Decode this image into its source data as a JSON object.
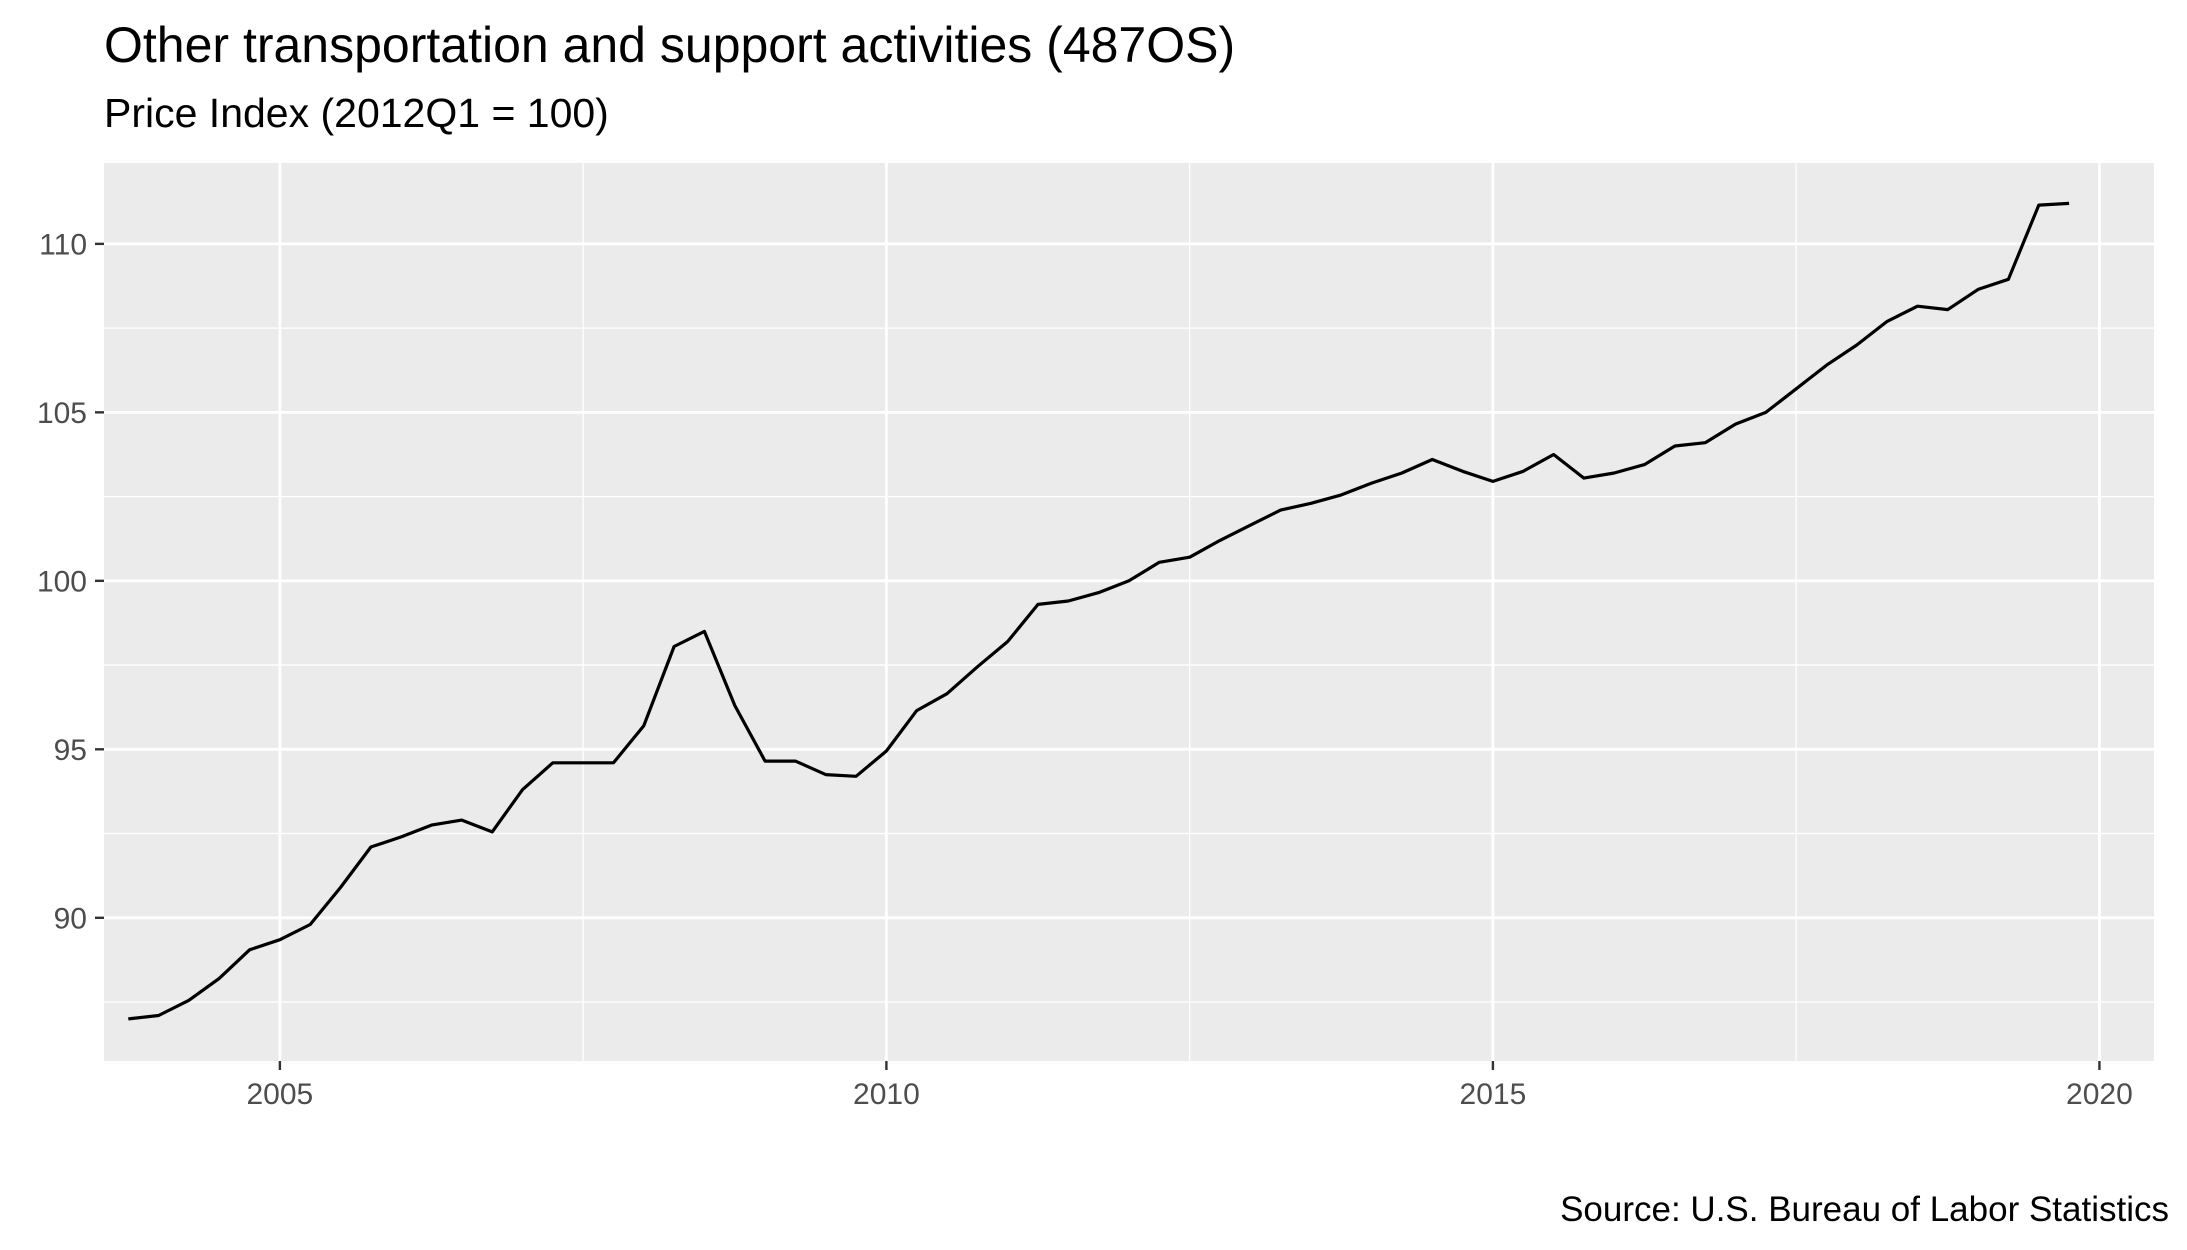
{
  "chart_data": {
    "type": "line",
    "title": "Other transportation and support activities (487OS)",
    "subtitle": "Price Index (2012Q1 = 100)",
    "caption": "Source: U.S. Bureau of Labor Statistics",
    "xlabel": "",
    "ylabel": "",
    "xlim": [
      2003.55,
      2020.45
    ],
    "ylim": [
      85.75,
      112.4
    ],
    "x_ticks": [
      2005,
      2010,
      2015,
      2020
    ],
    "y_ticks": [
      90,
      95,
      100,
      105,
      110
    ],
    "grid": true,
    "legend": "none",
    "colors": {
      "panel": "#ebebeb",
      "grid": "#ffffff",
      "line": "#000000",
      "tick_text": "#4d4d4d"
    },
    "series": [
      {
        "x": [
          "2003Q4",
          "2004Q1",
          "2004Q2",
          "2004Q3",
          "2004Q4",
          "2005Q1",
          "2005Q2",
          "2005Q3",
          "2005Q4",
          "2006Q1",
          "2006Q2",
          "2006Q3",
          "2006Q4",
          "2007Q1",
          "2007Q2",
          "2007Q3",
          "2007Q4",
          "2008Q1",
          "2008Q2",
          "2008Q3",
          "2008Q4",
          "2009Q1",
          "2009Q2",
          "2009Q3",
          "2009Q4",
          "2010Q1",
          "2010Q2",
          "2010Q3",
          "2010Q4",
          "2011Q1",
          "2011Q2",
          "2011Q3",
          "2011Q4",
          "2012Q1",
          "2012Q2",
          "2012Q3",
          "2012Q4",
          "2013Q1",
          "2013Q2",
          "2013Q3",
          "2013Q4",
          "2014Q1",
          "2014Q2",
          "2014Q3",
          "2014Q4",
          "2015Q1",
          "2015Q2",
          "2015Q3",
          "2015Q4",
          "2016Q1",
          "2016Q2",
          "2016Q3",
          "2016Q4",
          "2017Q1",
          "2017Q2",
          "2017Q3",
          "2017Q4",
          "2018Q1",
          "2018Q2",
          "2018Q3",
          "2018Q4",
          "2019Q1",
          "2019Q2",
          "2019Q3",
          "2019Q4"
        ],
        "values": [
          87.0,
          87.1,
          87.55,
          88.2,
          89.05,
          89.35,
          89.8,
          90.9,
          92.1,
          92.4,
          92.75,
          92.9,
          92.55,
          93.8,
          94.6,
          94.6,
          94.6,
          95.7,
          98.05,
          98.5,
          96.3,
          94.65,
          94.65,
          94.25,
          94.2,
          94.95,
          96.15,
          96.65,
          97.45,
          98.2,
          99.3,
          99.4,
          99.65,
          100.0,
          100.55,
          100.7,
          101.2,
          101.65,
          102.1,
          102.3,
          102.55,
          102.9,
          103.2,
          103.6,
          103.25,
          102.95,
          103.25,
          103.75,
          103.05,
          103.2,
          103.45,
          104.0,
          104.1,
          104.65,
          105.0,
          105.7,
          106.4,
          107.0,
          107.7,
          108.15,
          108.05,
          108.65,
          108.95,
          111.15,
          111.2
        ]
      }
    ]
  }
}
